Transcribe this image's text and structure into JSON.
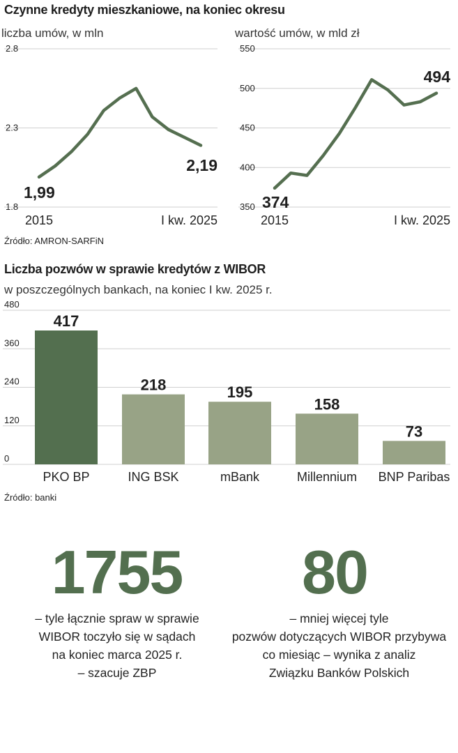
{
  "section1": {
    "title": "Czynne kredyty mieszkaniowe, na koniec okresu",
    "source": "Źródło: AMRON-SARFiN"
  },
  "section2": {
    "title": "Liczba pozwów w sprawie kredytów z WIBOR",
    "subtitle": "w poszczególnych bankach, na koniec I kw. 2025 r.",
    "source": "Źródło: banki"
  },
  "colors": {
    "dark_green": "#536f4f",
    "light_green": "#98a386",
    "line": "#556f50",
    "grid": "#cfcfcf"
  },
  "chart_data": [
    {
      "type": "line",
      "title": "",
      "ylabel": "liczba umów, w mln",
      "ylim": [
        1.8,
        2.8
      ],
      "yticks": [
        "2.8",
        "2.3",
        "1.8"
      ],
      "x_label_start": "2015",
      "x_label_end": "I kw. 2025",
      "x": [
        0,
        1,
        2,
        3,
        4,
        5,
        6,
        7,
        8,
        9,
        10
      ],
      "values": [
        1.99,
        2.06,
        2.15,
        2.26,
        2.41,
        2.49,
        2.55,
        2.37,
        2.29,
        2.24,
        2.19
      ],
      "first_label": "1,99",
      "last_label": "2,19",
      "grid": true
    },
    {
      "type": "line",
      "title": "",
      "ylabel": "wartość umów, w mld zł",
      "ylim": [
        350,
        550
      ],
      "yticks": [
        "550",
        "500",
        "450",
        "400",
        "350"
      ],
      "x_label_start": "2015",
      "x_label_end": "I kw. 2025",
      "x": [
        0,
        1,
        2,
        3,
        4,
        5,
        6,
        7,
        8,
        9,
        10
      ],
      "values": [
        374,
        393,
        390,
        415,
        443,
        476,
        511,
        498,
        479,
        483,
        494
      ],
      "first_label": "374",
      "last_label": "494",
      "grid": true
    },
    {
      "type": "bar",
      "title": "",
      "ylim": [
        0,
        480
      ],
      "yticks": [
        "480",
        "360",
        "240",
        "120",
        "0"
      ],
      "categories": [
        "PKO BP",
        "ING BSK",
        "mBank",
        "Millennium",
        "BNP Paribas"
      ],
      "values": [
        417,
        218,
        195,
        158,
        73
      ],
      "value_labels": [
        "417",
        "218",
        "195",
        "158",
        "73"
      ],
      "grid": true
    }
  ],
  "stats": [
    {
      "number": "1755",
      "lines": [
        "– tyle łącznie spraw w sprawie",
        "WIBOR toczyło się w sądach",
        "na koniec marca 2025 r.",
        "– szacuje ZBP"
      ]
    },
    {
      "number": "80",
      "lines": [
        "– mniej więcej tyle",
        "pozwów dotyczących WIBOR przybywa",
        "co miesiąc – wynika z analiz",
        "Związku Banków Polskich"
      ]
    }
  ]
}
